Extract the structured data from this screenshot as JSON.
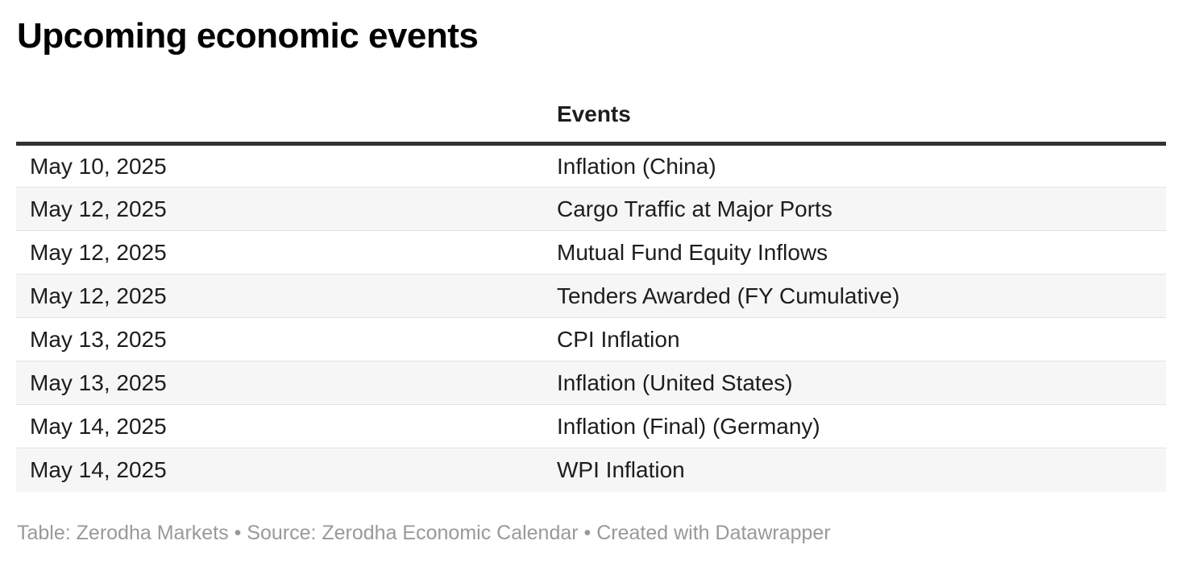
{
  "title": "Upcoming economic events",
  "chart_data": {
    "type": "table",
    "title": "Upcoming economic events",
    "columns": [
      "",
      "Events"
    ],
    "rows": [
      {
        "date": "May 10, 2025",
        "event": "Inflation (China)"
      },
      {
        "date": "May 12, 2025",
        "event": "Cargo Traffic at Major Ports"
      },
      {
        "date": "May 12, 2025",
        "event": "Mutual Fund Equity Inflows"
      },
      {
        "date": "May 12, 2025",
        "event": "Tenders Awarded (FY Cumulative)"
      },
      {
        "date": "May 13, 2025",
        "event": "CPI Inflation"
      },
      {
        "date": "May 13, 2025",
        "event": "Inflation (United States)"
      },
      {
        "date": "May 14, 2025",
        "event": "Inflation (Final) (Germany)"
      },
      {
        "date": "May 14, 2025",
        "event": "WPI Inflation"
      }
    ],
    "layout": {
      "zebra_striping": true,
      "header_rule": true
    }
  },
  "header": {
    "events_column_label": "Events",
    "date_column_label": ""
  },
  "footer": {
    "text": "Table: Zerodha Markets • Source: Zerodha Economic Calendar • Created with Datawrapper"
  },
  "colors": {
    "title_text": "#000000",
    "body_text": "#1d1d1d",
    "header_rule": "#333333",
    "zebra_row_bg": "#f6f6f6",
    "row_divider": "#e3e3e3",
    "footer_text": "#999999",
    "background": "#ffffff"
  }
}
